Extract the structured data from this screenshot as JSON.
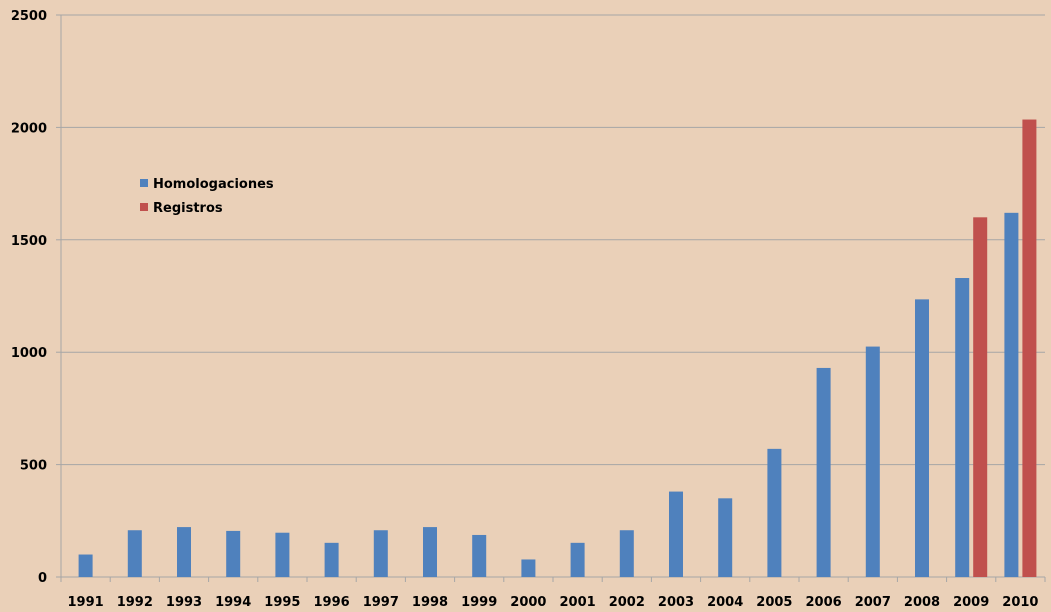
{
  "chart_data": {
    "type": "bar",
    "categories": [
      "1991",
      "1992",
      "1993",
      "1994",
      "1995",
      "1996",
      "1997",
      "1998",
      "1999",
      "2000",
      "2001",
      "2002",
      "2003",
      "2004",
      "2005",
      "2006",
      "2007",
      "2008",
      "2009",
      "2010"
    ],
    "series": [
      {
        "name": "Homologaciones",
        "color": "#4f81bd",
        "values": [
          100,
          208,
          222,
          205,
          197,
          152,
          208,
          222,
          187,
          78,
          152,
          208,
          380,
          350,
          570,
          930,
          1025,
          1235,
          1330,
          1620
        ]
      },
      {
        "name": "Registros",
        "color": "#c0504d",
        "values": [
          null,
          null,
          null,
          null,
          null,
          null,
          null,
          null,
          null,
          null,
          null,
          null,
          null,
          null,
          null,
          null,
          null,
          null,
          1600,
          2035
        ]
      }
    ],
    "ylim": [
      0,
      2500
    ],
    "yticks": [
      0,
      500,
      1000,
      1500,
      2000,
      2500
    ],
    "grid": true,
    "legend_placement": "upper-left",
    "colors": {
      "background": "#ead0b8",
      "gridline": "#a6a6a6",
      "axis": "#a6a6a6"
    }
  }
}
